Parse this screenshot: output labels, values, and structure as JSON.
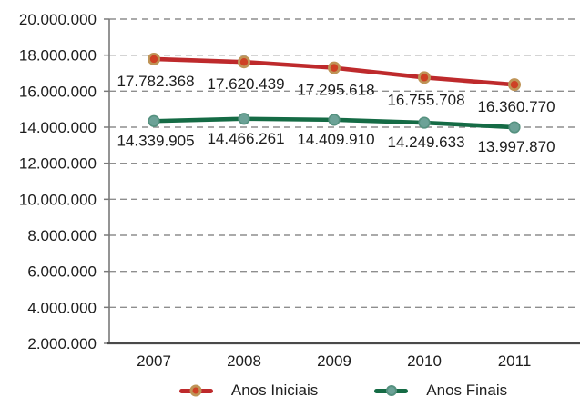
{
  "chart_data": {
    "type": "line",
    "title": "",
    "xlabel": "",
    "ylabel": "",
    "x_categories": [
      "2007",
      "2008",
      "2009",
      "2010",
      "2011"
    ],
    "series": [
      {
        "name": "Anos Iniciais",
        "values": [
          17782368,
          17620439,
          17295618,
          16755708,
          16360770
        ],
        "point_labels": [
          "17.782.368",
          "17.620.439",
          "17.295.618",
          "16.755.708",
          "16.360.770"
        ],
        "line_color": "#be2a2c",
        "marker_fill": "#ce4125",
        "marker_border": "#bf9457"
      },
      {
        "name": "Anos Finais",
        "values": [
          14339905,
          14466261,
          14409910,
          14249633,
          13997870
        ],
        "point_labels": [
          "14.339.905",
          "14.466.261",
          "14.409.910",
          "14.249.633",
          "13.997.870"
        ],
        "line_color": "#156b45",
        "marker_fill": "#6ca297",
        "marker_border": "#55917f"
      }
    ],
    "ylim": [
      2000000,
      20000000
    ],
    "ytick_interval": 2000000,
    "ytick_labels_top_to_bottom": [
      "20.000.000",
      "18.000.000",
      "16.000.000",
      "14.000.000",
      "12.000.000",
      "10.000.000",
      "8.000.000",
      "6.000.000",
      "4.000.000",
      "2.000.000"
    ],
    "grid": {
      "horizontal": true,
      "style": "dashed",
      "color": "#8e8e8e"
    },
    "y_axis_color": "#7a7a7a",
    "x_axis_color": "#4a4a4a",
    "text_color": "#1c1c1c",
    "legend_position": "bottom",
    "background": "#ffffff"
  }
}
